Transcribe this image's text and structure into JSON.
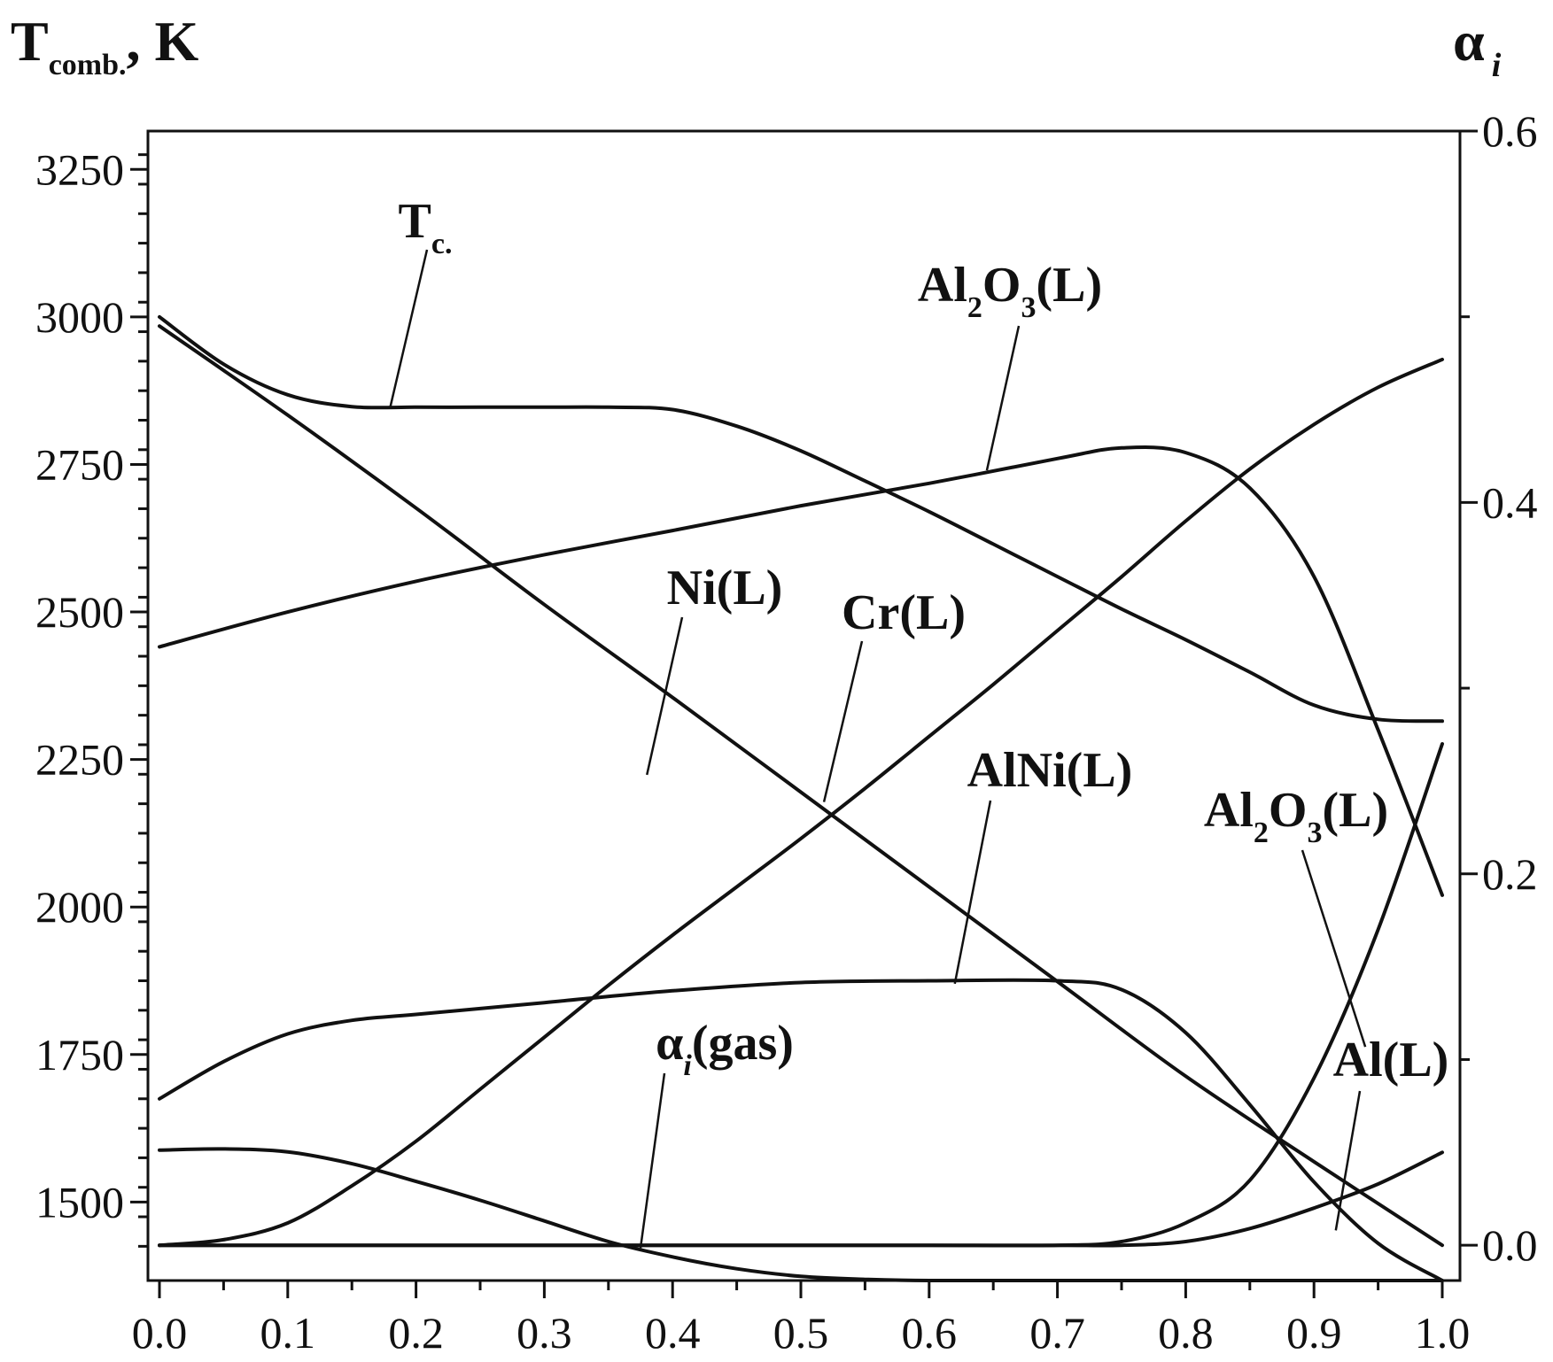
{
  "chart_data": {
    "type": "line",
    "y_left_title": {
      "main": "T",
      "sub": "comb.",
      "tail": ", K"
    },
    "y_right_title": {
      "main": "α",
      "sub": "i"
    },
    "x_ticks": [
      "0.0",
      "0.1",
      "0.2",
      "0.3",
      "0.4",
      "0.5",
      "0.6",
      "0.7",
      "0.8",
      "0.9",
      "1.0"
    ],
    "y_left_ticks": [
      "1500",
      "1750",
      "2000",
      "2250",
      "2500",
      "2750",
      "3000",
      "3250"
    ],
    "y_right_ticks": [
      "0.0",
      "0.2",
      "0.4",
      "0.6"
    ],
    "xlim": [
      0,
      1
    ],
    "y_left_lim": [
      1367,
      3315
    ],
    "y_right_lim": [
      -0.019,
      0.6
    ],
    "series": [
      {
        "name": "Tc.",
        "axis": "left",
        "x": [
          0,
          0.05,
          0.1,
          0.15,
          0.2,
          0.25,
          0.3,
          0.35,
          0.4,
          0.45,
          0.5,
          0.55,
          0.6,
          0.65,
          0.7,
          0.75,
          0.8,
          0.85,
          0.9,
          0.95,
          1.0
        ],
        "y": [
          3000,
          2920,
          2868,
          2848,
          2847,
          2847,
          2847,
          2847,
          2843,
          2815,
          2773,
          2722,
          2670,
          2615,
          2560,
          2505,
          2453,
          2398,
          2342,
          2318,
          2315
        ]
      },
      {
        "name": "Ni(L)",
        "axis": "right",
        "x": [
          0,
          0.1,
          0.2,
          0.3,
          0.4,
          0.5,
          0.6,
          0.7,
          0.8,
          0.9,
          1.0
        ],
        "y": [
          0.495,
          0.447,
          0.397,
          0.345,
          0.295,
          0.244,
          0.193,
          0.142,
          0.091,
          0.045,
          0.0
        ]
      },
      {
        "name": "Cr(L)",
        "axis": "right",
        "x": [
          0,
          0.05,
          0.1,
          0.15,
          0.2,
          0.25,
          0.3,
          0.35,
          0.4,
          0.45,
          0.5,
          0.55,
          0.6,
          0.65,
          0.7,
          0.75,
          0.8,
          0.85,
          0.9,
          0.95,
          1.0
        ],
        "y": [
          0.0,
          0.003,
          0.012,
          0.032,
          0.056,
          0.084,
          0.112,
          0.14,
          0.167,
          0.193,
          0.219,
          0.246,
          0.274,
          0.302,
          0.331,
          0.36,
          0.39,
          0.418,
          0.442,
          0.462,
          0.477
        ]
      },
      {
        "name": "Al2O3(L)",
        "axis": "left",
        "x": [
          0,
          0.1,
          0.2,
          0.3,
          0.4,
          0.5,
          0.6,
          0.7,
          0.75,
          0.8,
          0.85,
          0.9,
          0.95,
          1.0
        ],
        "y": [
          2441,
          2500,
          2552,
          2597,
          2638,
          2680,
          2718,
          2760,
          2778,
          2770,
          2710,
          2560,
          2300,
          2020
        ]
      },
      {
        "name": "AlNi(L)",
        "axis": "left",
        "x": [
          0,
          0.05,
          0.1,
          0.15,
          0.2,
          0.3,
          0.4,
          0.5,
          0.6,
          0.7,
          0.75,
          0.8,
          0.85,
          0.9,
          0.95,
          1.0
        ],
        "y": [
          1675,
          1738,
          1785,
          1808,
          1818,
          1838,
          1858,
          1872,
          1875,
          1875,
          1860,
          1787,
          1665,
          1534,
          1430,
          1367
        ]
      },
      {
        "name": "αi(gas)",
        "axis": "left",
        "x": [
          0,
          0.05,
          0.1,
          0.15,
          0.2,
          0.25,
          0.3,
          0.35,
          0.4,
          0.45,
          0.5,
          0.55,
          0.6,
          0.7,
          0.8,
          0.9,
          1.0
        ],
        "y": [
          1588,
          1590,
          1585,
          1565,
          1535,
          1503,
          1468,
          1433,
          1407,
          1387,
          1374,
          1369,
          1367,
          1367,
          1367,
          1367,
          1367
        ]
      },
      {
        "name": "Al2O3(L)",
        "axis": "right",
        "x": [
          0,
          0.1,
          0.2,
          0.3,
          0.4,
          0.5,
          0.6,
          0.7,
          0.75,
          0.8,
          0.85,
          0.9,
          0.95,
          1.0
        ],
        "y": [
          0,
          0,
          0,
          0,
          0,
          0,
          0,
          0,
          0.002,
          0.012,
          0.035,
          0.09,
          0.17,
          0.27
        ]
      },
      {
        "name": "Al(L)",
        "axis": "right",
        "x": [
          0,
          0.1,
          0.2,
          0.3,
          0.4,
          0.5,
          0.6,
          0.7,
          0.75,
          0.8,
          0.85,
          0.9,
          0.95,
          1.0
        ],
        "y": [
          0,
          0,
          0,
          0,
          0,
          0,
          0,
          0,
          0,
          0.002,
          0.009,
          0.02,
          0.033,
          0.05
        ]
      }
    ],
    "annotations": [
      {
        "id": "tc",
        "main": "T",
        "sub": "c.",
        "x": 0.18,
        "y": 2848,
        "axis": "left"
      },
      {
        "id": "al2o3-upper",
        "main": "Al",
        "sub": "2",
        "main2": "O",
        "sub2": "3",
        "tail": "(L)",
        "x": 0.645,
        "y": 2740,
        "axis": "left"
      },
      {
        "id": "ni",
        "text": "Ni(L)",
        "x": 0.38,
        "y": 2224,
        "axis": "left"
      },
      {
        "id": "cr",
        "text": "Cr(L)",
        "x": 0.518,
        "y": 2178,
        "axis": "left"
      },
      {
        "id": "alni",
        "text": "AlNi(L)",
        "x": 0.62,
        "y": 1870,
        "axis": "left"
      },
      {
        "id": "al2o3-lower",
        "main": "Al",
        "sub": "2",
        "main2": "O",
        "sub2": "3",
        "tail": "(L)",
        "x": 0.94,
        "y": 1763,
        "axis": "left"
      },
      {
        "id": "al",
        "text": "Al(L)",
        "x": 0.917,
        "y": 1452,
        "axis": "left"
      },
      {
        "id": "gas",
        "main": "α",
        "sub": "i",
        "tail": "(gas)",
        "x": 0.375,
        "y": 1422,
        "axis": "left"
      }
    ]
  }
}
